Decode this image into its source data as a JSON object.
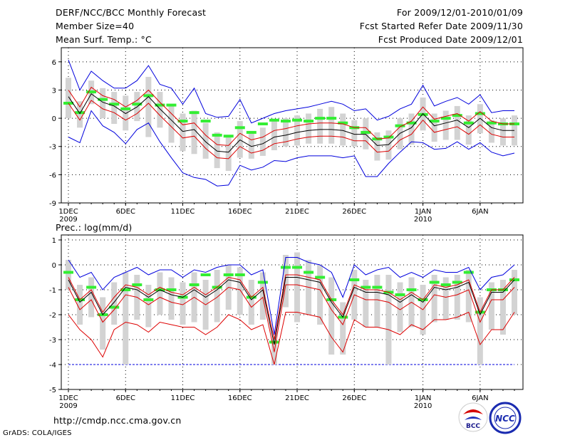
{
  "header": {
    "title": "DERF/NCC/BCC Monthly Forecast",
    "member_size": "Member Size=40",
    "variable1": "Mean Surf. Temp.: °C",
    "period": "For 2009/12/01-2010/01/09",
    "started": "Fcst Started Refer Date 2009/11/30",
    "produced": "Fcst Produced Date 2009/12/01"
  },
  "footer": {
    "url": "http://cmdp.ncc.cma.gov.cn",
    "grads": "GrADS: COLA/IGES",
    "logo_bcc": "BCC",
    "logo_ncc": "NCC"
  },
  "colors": {
    "mean": "#000000",
    "spread": "#dd0000",
    "extreme": "#0000dd",
    "box": "#d3d3d3",
    "median": "#33ee33",
    "base": "#0000dd"
  },
  "chart_data": [
    {
      "type": "line",
      "title": "Mean Surf. Temp.: °C",
      "ylim": [
        -9,
        7.5
      ],
      "yticks": [
        -9,
        -6,
        -3,
        0,
        3,
        6
      ],
      "xticks": [
        {
          "day": 1,
          "label": "1DEC",
          "sub": "2009"
        },
        {
          "day": 6,
          "label": "6DEC",
          "sub": ""
        },
        {
          "day": 11,
          "label": "11DEC",
          "sub": ""
        },
        {
          "day": 16,
          "label": "16DEC",
          "sub": ""
        },
        {
          "day": 21,
          "label": "21DEC",
          "sub": ""
        },
        {
          "day": 26,
          "label": "26DEC",
          "sub": ""
        },
        {
          "day": 32,
          "label": "1JAN",
          "sub": "2010"
        },
        {
          "day": 37,
          "label": "6JAN",
          "sub": ""
        }
      ],
      "x_days": [
        1,
        2,
        3,
        4,
        5,
        6,
        7,
        8,
        9,
        10,
        11,
        12,
        13,
        14,
        15,
        16,
        17,
        18,
        19,
        20,
        21,
        22,
        23,
        24,
        25,
        26,
        27,
        28,
        29,
        30,
        31,
        32,
        33,
        34,
        35,
        36,
        37,
        38,
        39,
        40
      ],
      "series": [
        {
          "name": "mean",
          "values": [
            2.3,
            0.5,
            2.6,
            1.7,
            1.3,
            0.5,
            1.2,
            2.3,
            1.0,
            -0.2,
            -1.4,
            -1.2,
            -2.5,
            -3.5,
            -3.6,
            -2.3,
            -3.0,
            -2.7,
            -2.0,
            -1.8,
            -1.5,
            -1.3,
            -1.2,
            -1.2,
            -1.3,
            -1.7,
            -1.7,
            -2.9,
            -2.8,
            -1.6,
            -1.0,
            0.5,
            -0.8,
            -0.5,
            -0.2,
            -1.0,
            0.0,
            -1.0,
            -1.3,
            -1.3
          ]
        },
        {
          "name": "upper_spread",
          "values": [
            3.0,
            1.2,
            3.3,
            2.4,
            2.0,
            1.2,
            1.9,
            3.0,
            1.7,
            0.5,
            -0.7,
            -0.5,
            -1.8,
            -2.8,
            -2.9,
            -1.6,
            -2.3,
            -2.0,
            -1.3,
            -1.1,
            -0.8,
            -0.6,
            -0.5,
            -0.5,
            -0.6,
            -1.0,
            -1.0,
            -2.2,
            -2.1,
            -0.9,
            -0.3,
            1.2,
            -0.1,
            0.2,
            0.5,
            -0.3,
            0.7,
            -0.3,
            -0.6,
            -0.6
          ]
        },
        {
          "name": "lower_spread",
          "values": [
            1.6,
            -0.2,
            1.9,
            1.0,
            0.6,
            -0.2,
            0.5,
            1.6,
            0.3,
            -0.9,
            -2.1,
            -1.9,
            -3.2,
            -4.2,
            -4.3,
            -3.0,
            -3.7,
            -3.4,
            -2.7,
            -2.5,
            -2.2,
            -2.0,
            -1.9,
            -1.9,
            -2.0,
            -2.4,
            -2.4,
            -3.6,
            -3.5,
            -2.3,
            -1.7,
            -0.2,
            -1.5,
            -1.2,
            -0.9,
            -1.7,
            -0.7,
            -1.7,
            -2.0,
            -2.0
          ]
        },
        {
          "name": "max",
          "values": [
            6.2,
            3.0,
            5.0,
            4.0,
            3.2,
            3.2,
            4.0,
            5.6,
            3.6,
            3.2,
            1.5,
            3.2,
            0.5,
            0.1,
            0.2,
            2.0,
            -0.5,
            0.0,
            0.5,
            0.8,
            1.0,
            1.2,
            1.5,
            1.8,
            1.5,
            0.8,
            1.0,
            -0.2,
            0.2,
            1.0,
            1.5,
            3.5,
            1.3,
            1.8,
            2.2,
            1.5,
            2.5,
            0.6,
            0.8,
            0.8
          ]
        },
        {
          "name": "min",
          "values": [
            -2.0,
            -2.6,
            0.8,
            -0.8,
            -1.5,
            -2.7,
            -1.2,
            -0.5,
            -2.5,
            -4.2,
            -5.8,
            -6.3,
            -6.5,
            -7.2,
            -7.1,
            -5.0,
            -5.5,
            -5.2,
            -4.5,
            -4.6,
            -4.2,
            -4.0,
            -4.0,
            -4.0,
            -4.2,
            -4.0,
            -6.2,
            -6.2,
            -4.8,
            -3.6,
            -2.5,
            -2.6,
            -3.3,
            -3.2,
            -2.5,
            -3.3,
            -2.6,
            -3.6,
            -4.0,
            -3.7
          ]
        },
        {
          "name": "box_top",
          "values": [
            4.3,
            1.8,
            4.0,
            3.2,
            2.8,
            2.4,
            2.8,
            4.4,
            2.8,
            1.5,
            0.5,
            0.8,
            -0.5,
            -1.5,
            -2.0,
            -0.3,
            -1.5,
            -1.0,
            -0.2,
            0.0,
            0.3,
            0.5,
            1.0,
            1.2,
            0.5,
            -0.2,
            0.0,
            -1.5,
            -1.3,
            0.0,
            0.5,
            2.2,
            0.5,
            0.8,
            1.3,
            0.3,
            1.5,
            -0.2,
            0.0,
            0.3
          ]
        },
        {
          "name": "box_bottom",
          "values": [
            0.0,
            -1.0,
            1.5,
            0.0,
            -0.6,
            -1.3,
            -0.3,
            -2.0,
            -1.0,
            -2.6,
            -3.5,
            -3.8,
            -4.3,
            -5.3,
            -5.6,
            -4.2,
            -4.3,
            -4.0,
            -3.4,
            -3.0,
            -2.9,
            -2.7,
            -2.7,
            -2.7,
            -2.9,
            -3.0,
            -3.3,
            -4.5,
            -4.4,
            -3.3,
            -2.8,
            -1.3,
            -2.5,
            -2.3,
            -2.3,
            -2.8,
            -1.6,
            -2.6,
            -2.9,
            -2.9
          ]
        },
        {
          "name": "median",
          "values": [
            1.6,
            0.6,
            2.8,
            2.0,
            1.5,
            1.0,
            1.5,
            2.4,
            1.4,
            1.4,
            -0.3,
            0.6,
            -0.3,
            -1.8,
            -1.9,
            -1.0,
            -1.5,
            -0.6,
            -0.2,
            -0.3,
            -0.2,
            -0.3,
            0.0,
            0.0,
            -0.5,
            -1.0,
            -1.5,
            -2.2,
            -2.0,
            -0.8,
            -0.5,
            0.4,
            -0.3,
            0.0,
            0.3,
            -0.5,
            0.5,
            -0.5,
            -0.6,
            -0.6
          ]
        }
      ]
    },
    {
      "type": "line",
      "title": "Prec.: log(mm/d)",
      "ylim": [
        -5,
        1.2
      ],
      "yticks": [
        -5,
        -4,
        -3,
        -2,
        -1,
        0,
        1
      ],
      "xticks": [
        {
          "day": 1,
          "label": "1DEC",
          "sub": "2009"
        },
        {
          "day": 6,
          "label": "6DEC",
          "sub": ""
        },
        {
          "day": 11,
          "label": "11DEC",
          "sub": ""
        },
        {
          "day": 16,
          "label": "16DEC",
          "sub": ""
        },
        {
          "day": 21,
          "label": "21DEC",
          "sub": ""
        },
        {
          "day": 26,
          "label": "26DEC",
          "sub": ""
        },
        {
          "day": 32,
          "label": "1JAN",
          "sub": "2010"
        },
        {
          "day": 37,
          "label": "6JAN",
          "sub": ""
        }
      ],
      "x_days": [
        1,
        2,
        3,
        4,
        5,
        6,
        7,
        8,
        9,
        10,
        11,
        12,
        13,
        14,
        15,
        16,
        17,
        18,
        19,
        20,
        21,
        22,
        23,
        24,
        25,
        26,
        27,
        28,
        29,
        30,
        31,
        32,
        33,
        34,
        35,
        36,
        37,
        38,
        39,
        40
      ],
      "baseline": -4,
      "series": [
        {
          "name": "mean",
          "values": [
            -0.6,
            -1.5,
            -1.1,
            -2.0,
            -1.5,
            -0.9,
            -1.0,
            -1.3,
            -1.0,
            -1.2,
            -1.3,
            -1.0,
            -1.3,
            -1.0,
            -0.6,
            -0.7,
            -1.4,
            -1.0,
            -3.2,
            -0.5,
            -0.5,
            -0.6,
            -0.7,
            -1.5,
            -2.1,
            -0.9,
            -1.1,
            -1.1,
            -1.2,
            -1.5,
            -1.2,
            -1.5,
            -0.9,
            -1.0,
            -0.9,
            -0.7,
            -2.0,
            -1.1,
            -1.1,
            -0.6
          ]
        },
        {
          "name": "upper_spread",
          "values": [
            -0.5,
            -1.4,
            -1.0,
            -1.9,
            -1.3,
            -0.8,
            -0.9,
            -1.2,
            -0.9,
            -1.1,
            -1.2,
            -0.9,
            -1.2,
            -0.9,
            -0.5,
            -0.6,
            -1.3,
            -0.9,
            -3.0,
            -0.4,
            -0.4,
            -0.5,
            -0.6,
            -1.4,
            -2.0,
            -0.8,
            -1.0,
            -1.0,
            -1.1,
            -1.4,
            -1.1,
            -1.4,
            -0.8,
            -0.9,
            -0.8,
            -0.6,
            -1.9,
            -1.0,
            -1.0,
            -0.5
          ]
        },
        {
          "name": "lower_spread",
          "values": [
            -0.9,
            -1.8,
            -1.4,
            -2.3,
            -1.8,
            -1.2,
            -1.3,
            -1.6,
            -1.3,
            -1.5,
            -1.6,
            -1.3,
            -1.6,
            -1.3,
            -0.9,
            -1.0,
            -1.7,
            -1.3,
            -3.5,
            -0.8,
            -0.8,
            -0.9,
            -1.0,
            -1.8,
            -2.4,
            -1.2,
            -1.4,
            -1.4,
            -1.5,
            -1.8,
            -1.5,
            -1.8,
            -1.2,
            -1.3,
            -1.2,
            -1.0,
            -2.3,
            -1.4,
            -1.4,
            -0.9
          ]
        },
        {
          "name": "lower_red",
          "values": [
            -2.0,
            -2.6,
            -3.0,
            -3.7,
            -2.6,
            -2.3,
            -2.4,
            -2.7,
            -2.3,
            -2.4,
            -2.5,
            -2.5,
            -2.8,
            -2.5,
            -2.0,
            -2.2,
            -2.6,
            -2.4,
            -4.0,
            -1.9,
            -1.9,
            -2.0,
            -2.1,
            -2.9,
            -3.5,
            -2.2,
            -2.5,
            -2.5,
            -2.6,
            -2.8,
            -2.4,
            -2.6,
            -2.2,
            -2.2,
            -2.1,
            -1.9,
            -3.2,
            -2.6,
            -2.6,
            -1.9
          ]
        },
        {
          "name": "max",
          "values": [
            0.2,
            -0.5,
            -0.3,
            -1.0,
            -0.5,
            -0.3,
            -0.1,
            -0.4,
            -0.2,
            -0.2,
            -0.5,
            -0.2,
            -0.3,
            -0.1,
            0.0,
            0.0,
            -0.4,
            -0.2,
            -2.8,
            0.3,
            0.3,
            0.1,
            0.0,
            -0.3,
            -1.3,
            0.0,
            -0.4,
            -0.2,
            -0.1,
            -0.5,
            -0.3,
            -0.5,
            -0.2,
            -0.3,
            -0.3,
            -0.1,
            -1.0,
            -0.5,
            -0.4,
            0.0
          ]
        },
        {
          "name": "box_top",
          "values": [
            0.2,
            -0.8,
            -0.5,
            -1.3,
            -0.7,
            -0.3,
            -0.4,
            -0.8,
            -0.3,
            -0.5,
            -0.7,
            -0.3,
            -0.6,
            -0.2,
            0.0,
            -0.1,
            -0.6,
            -0.3,
            -3.0,
            0.4,
            0.5,
            0.2,
            0.0,
            -0.5,
            -1.5,
            -0.2,
            -0.6,
            -0.4,
            -0.4,
            -0.7,
            -0.5,
            -0.8,
            -0.4,
            -0.5,
            -0.4,
            -0.2,
            -1.3,
            -0.7,
            -0.6,
            -0.2
          ]
        },
        {
          "name": "box_bottom",
          "values": [
            -1.0,
            -2.4,
            -2.1,
            -3.4,
            -2.4,
            -4.0,
            -2.2,
            -2.5,
            -2.0,
            -2.2,
            -2.4,
            -2.3,
            -2.6,
            -2.3,
            -1.8,
            -2.0,
            -2.4,
            -2.2,
            -4.0,
            -1.7,
            -2.3,
            -2.0,
            -2.4,
            -3.6,
            -3.6,
            -2.2,
            -2.5,
            -2.5,
            -4.0,
            -2.7,
            -2.5,
            -2.8,
            -2.3,
            -2.2,
            -2.2,
            -2.3,
            -4.0,
            -2.6,
            -2.8,
            -2.0
          ]
        },
        {
          "name": "median",
          "values": [
            -0.3,
            -1.4,
            -0.9,
            -2.0,
            -1.7,
            -1.0,
            -0.8,
            -1.4,
            -1.0,
            -1.0,
            -1.3,
            -0.8,
            -0.4,
            -0.9,
            -0.4,
            -0.4,
            -1.3,
            -0.7,
            -3.1,
            -0.1,
            -0.1,
            -0.3,
            -0.5,
            -1.4,
            -2.1,
            -0.6,
            -0.9,
            -0.9,
            -1.1,
            -1.2,
            -1.0,
            -1.4,
            -0.7,
            -0.8,
            -0.7,
            -0.3,
            -1.9,
            -1.0,
            -1.0,
            -0.6
          ]
        }
      ]
    }
  ]
}
